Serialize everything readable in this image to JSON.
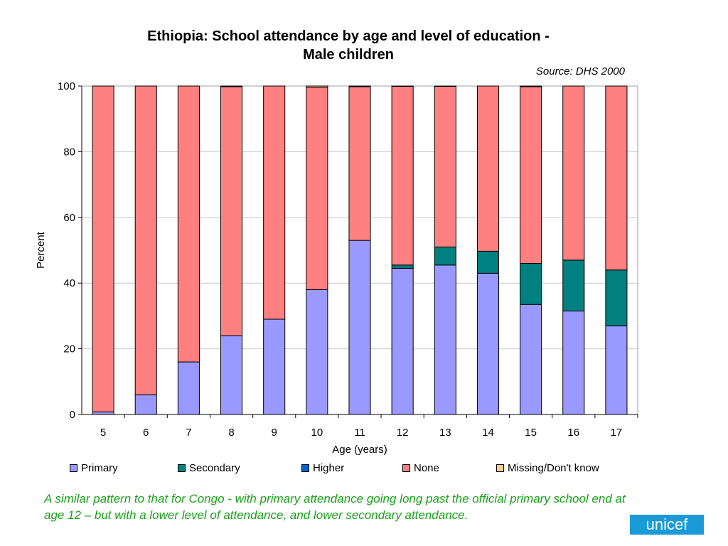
{
  "header": {
    "title_line1": "Ethiopia:  School attendance by age and level of education  -",
    "title_line2": "Male children",
    "source": "Source: DHS 2000"
  },
  "chart_data": {
    "type": "bar",
    "stacked": true,
    "title": "Ethiopia:  School attendance by age and level of education  - Male children",
    "xlabel": "Age (years)",
    "ylabel": "Percent",
    "ylim": [
      0,
      100
    ],
    "yticks": [
      0,
      20,
      40,
      60,
      80,
      100
    ],
    "grid": true,
    "legend_position": "bottom",
    "categories": [
      "5",
      "6",
      "7",
      "8",
      "9",
      "10",
      "11",
      "12",
      "13",
      "14",
      "15",
      "16",
      "17"
    ],
    "series": [
      {
        "name": "Primary",
        "color": "#9999ff",
        "values": [
          0.8,
          6,
          16,
          24,
          29,
          38,
          53,
          44.5,
          45.5,
          43,
          33.5,
          31.5,
          27
        ]
      },
      {
        "name": "Secondary",
        "color": "#008080",
        "values": [
          0,
          0,
          0,
          0,
          0,
          0,
          0,
          1,
          5.5,
          6.7,
          12.5,
          15.5,
          17
        ]
      },
      {
        "name": "Higher",
        "color": "#0066cc",
        "values": [
          0,
          0,
          0,
          0,
          0,
          0,
          0,
          0,
          0,
          0,
          0,
          0,
          0
        ]
      },
      {
        "name": "None",
        "color": "#ff8080",
        "values": [
          99.2,
          94,
          84,
          75.8,
          71,
          61.6,
          46.8,
          54.4,
          48.9,
          50.3,
          53.8,
          53,
          56
        ]
      },
      {
        "name": "Missing/Don't know",
        "color": "#ffcc99",
        "values": [
          0,
          0,
          0,
          0.2,
          0,
          0.4,
          0.2,
          0.1,
          0.1,
          0,
          0.2,
          0,
          0
        ]
      }
    ]
  },
  "caption": "A similar pattern to that for Congo - with primary attendance going long past the official primary school end at age 12 – but with a lower level of attendance, and lower secondary attendance.",
  "logo": {
    "text": "unicef"
  }
}
